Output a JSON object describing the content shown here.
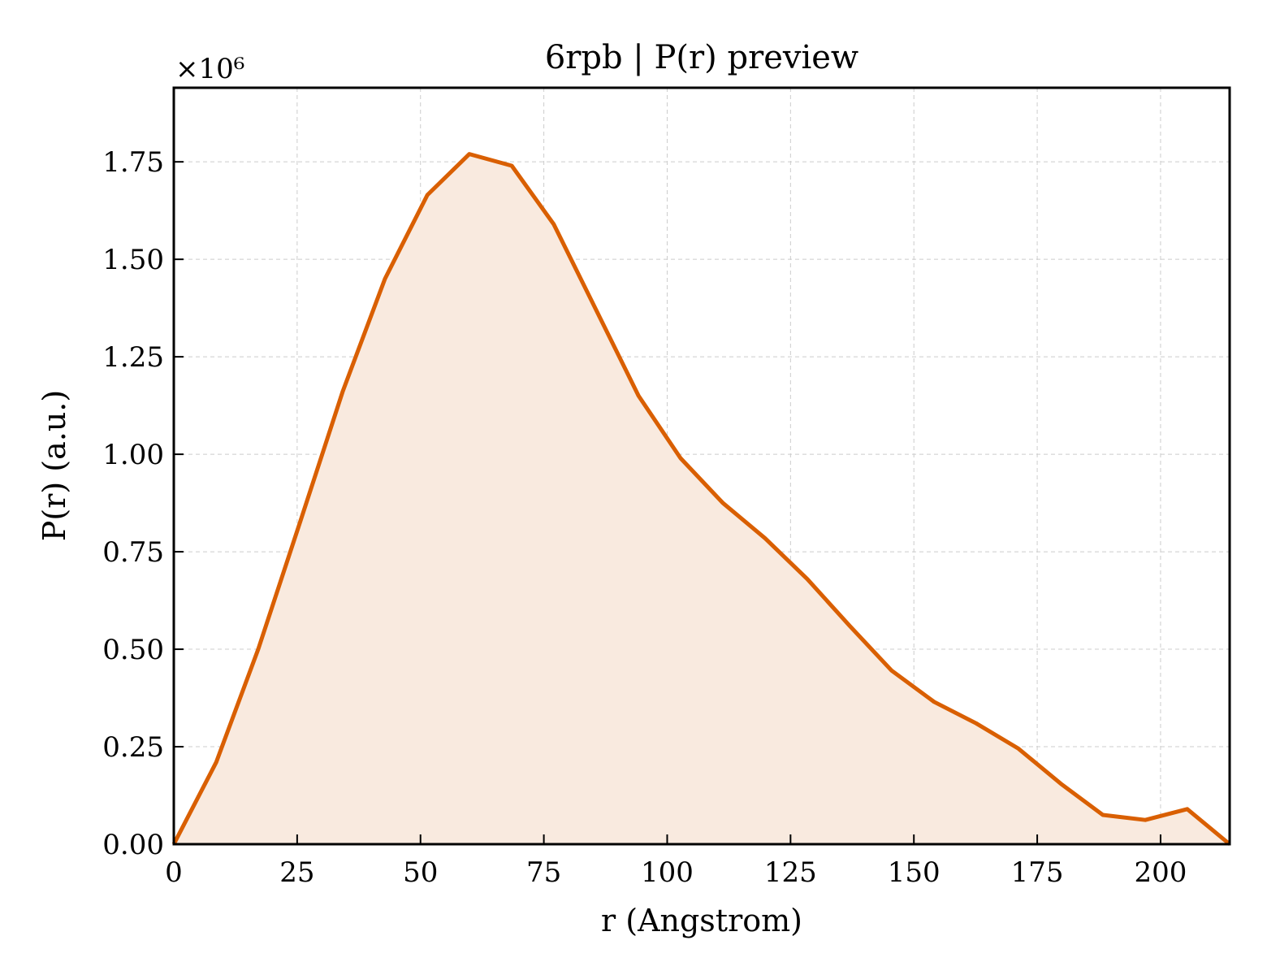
{
  "chart_data": {
    "type": "area",
    "title": "6rpb | P(r) preview",
    "xlabel": "r (Angstrom)",
    "ylabel": "P(r) (a.u.)",
    "y_offset_label": "×10⁶",
    "xlim": [
      0,
      214
    ],
    "ylim": [
      0,
      1.94
    ],
    "x_ticks": [
      0,
      25,
      50,
      75,
      100,
      125,
      150,
      175,
      200
    ],
    "x_tick_labels": [
      "0",
      "25",
      "50",
      "75",
      "100",
      "125",
      "150",
      "175",
      "200"
    ],
    "y_ticks": [
      0,
      0.25,
      0.5,
      0.75,
      1.0,
      1.25,
      1.5,
      1.75
    ],
    "y_tick_labels": [
      "0.00",
      "0.25",
      "0.50",
      "0.75",
      "1.00",
      "1.25",
      "1.50",
      "1.75"
    ],
    "grid": true,
    "line_color": "#d95f02",
    "fill_color": "#f9eadf",
    "series": [
      {
        "x": [
          0,
          8.6,
          17.1,
          25.7,
          34.2,
          42.8,
          51.4,
          59.9,
          68.5,
          77.0,
          85.6,
          94.2,
          102.7,
          111.3,
          119.8,
          128.4,
          137.0,
          145.5,
          154.1,
          162.6,
          171.2,
          179.8,
          188.3,
          196.9,
          205.4,
          214.0
        ],
        "y": [
          0.0,
          0.21,
          0.5,
          0.83,
          1.16,
          1.45,
          1.665,
          1.77,
          1.74,
          1.59,
          1.37,
          1.15,
          0.99,
          0.875,
          0.785,
          0.68,
          0.56,
          0.445,
          0.365,
          0.31,
          0.245,
          0.155,
          0.075,
          0.062,
          0.09,
          0.0
        ]
      }
    ]
  }
}
